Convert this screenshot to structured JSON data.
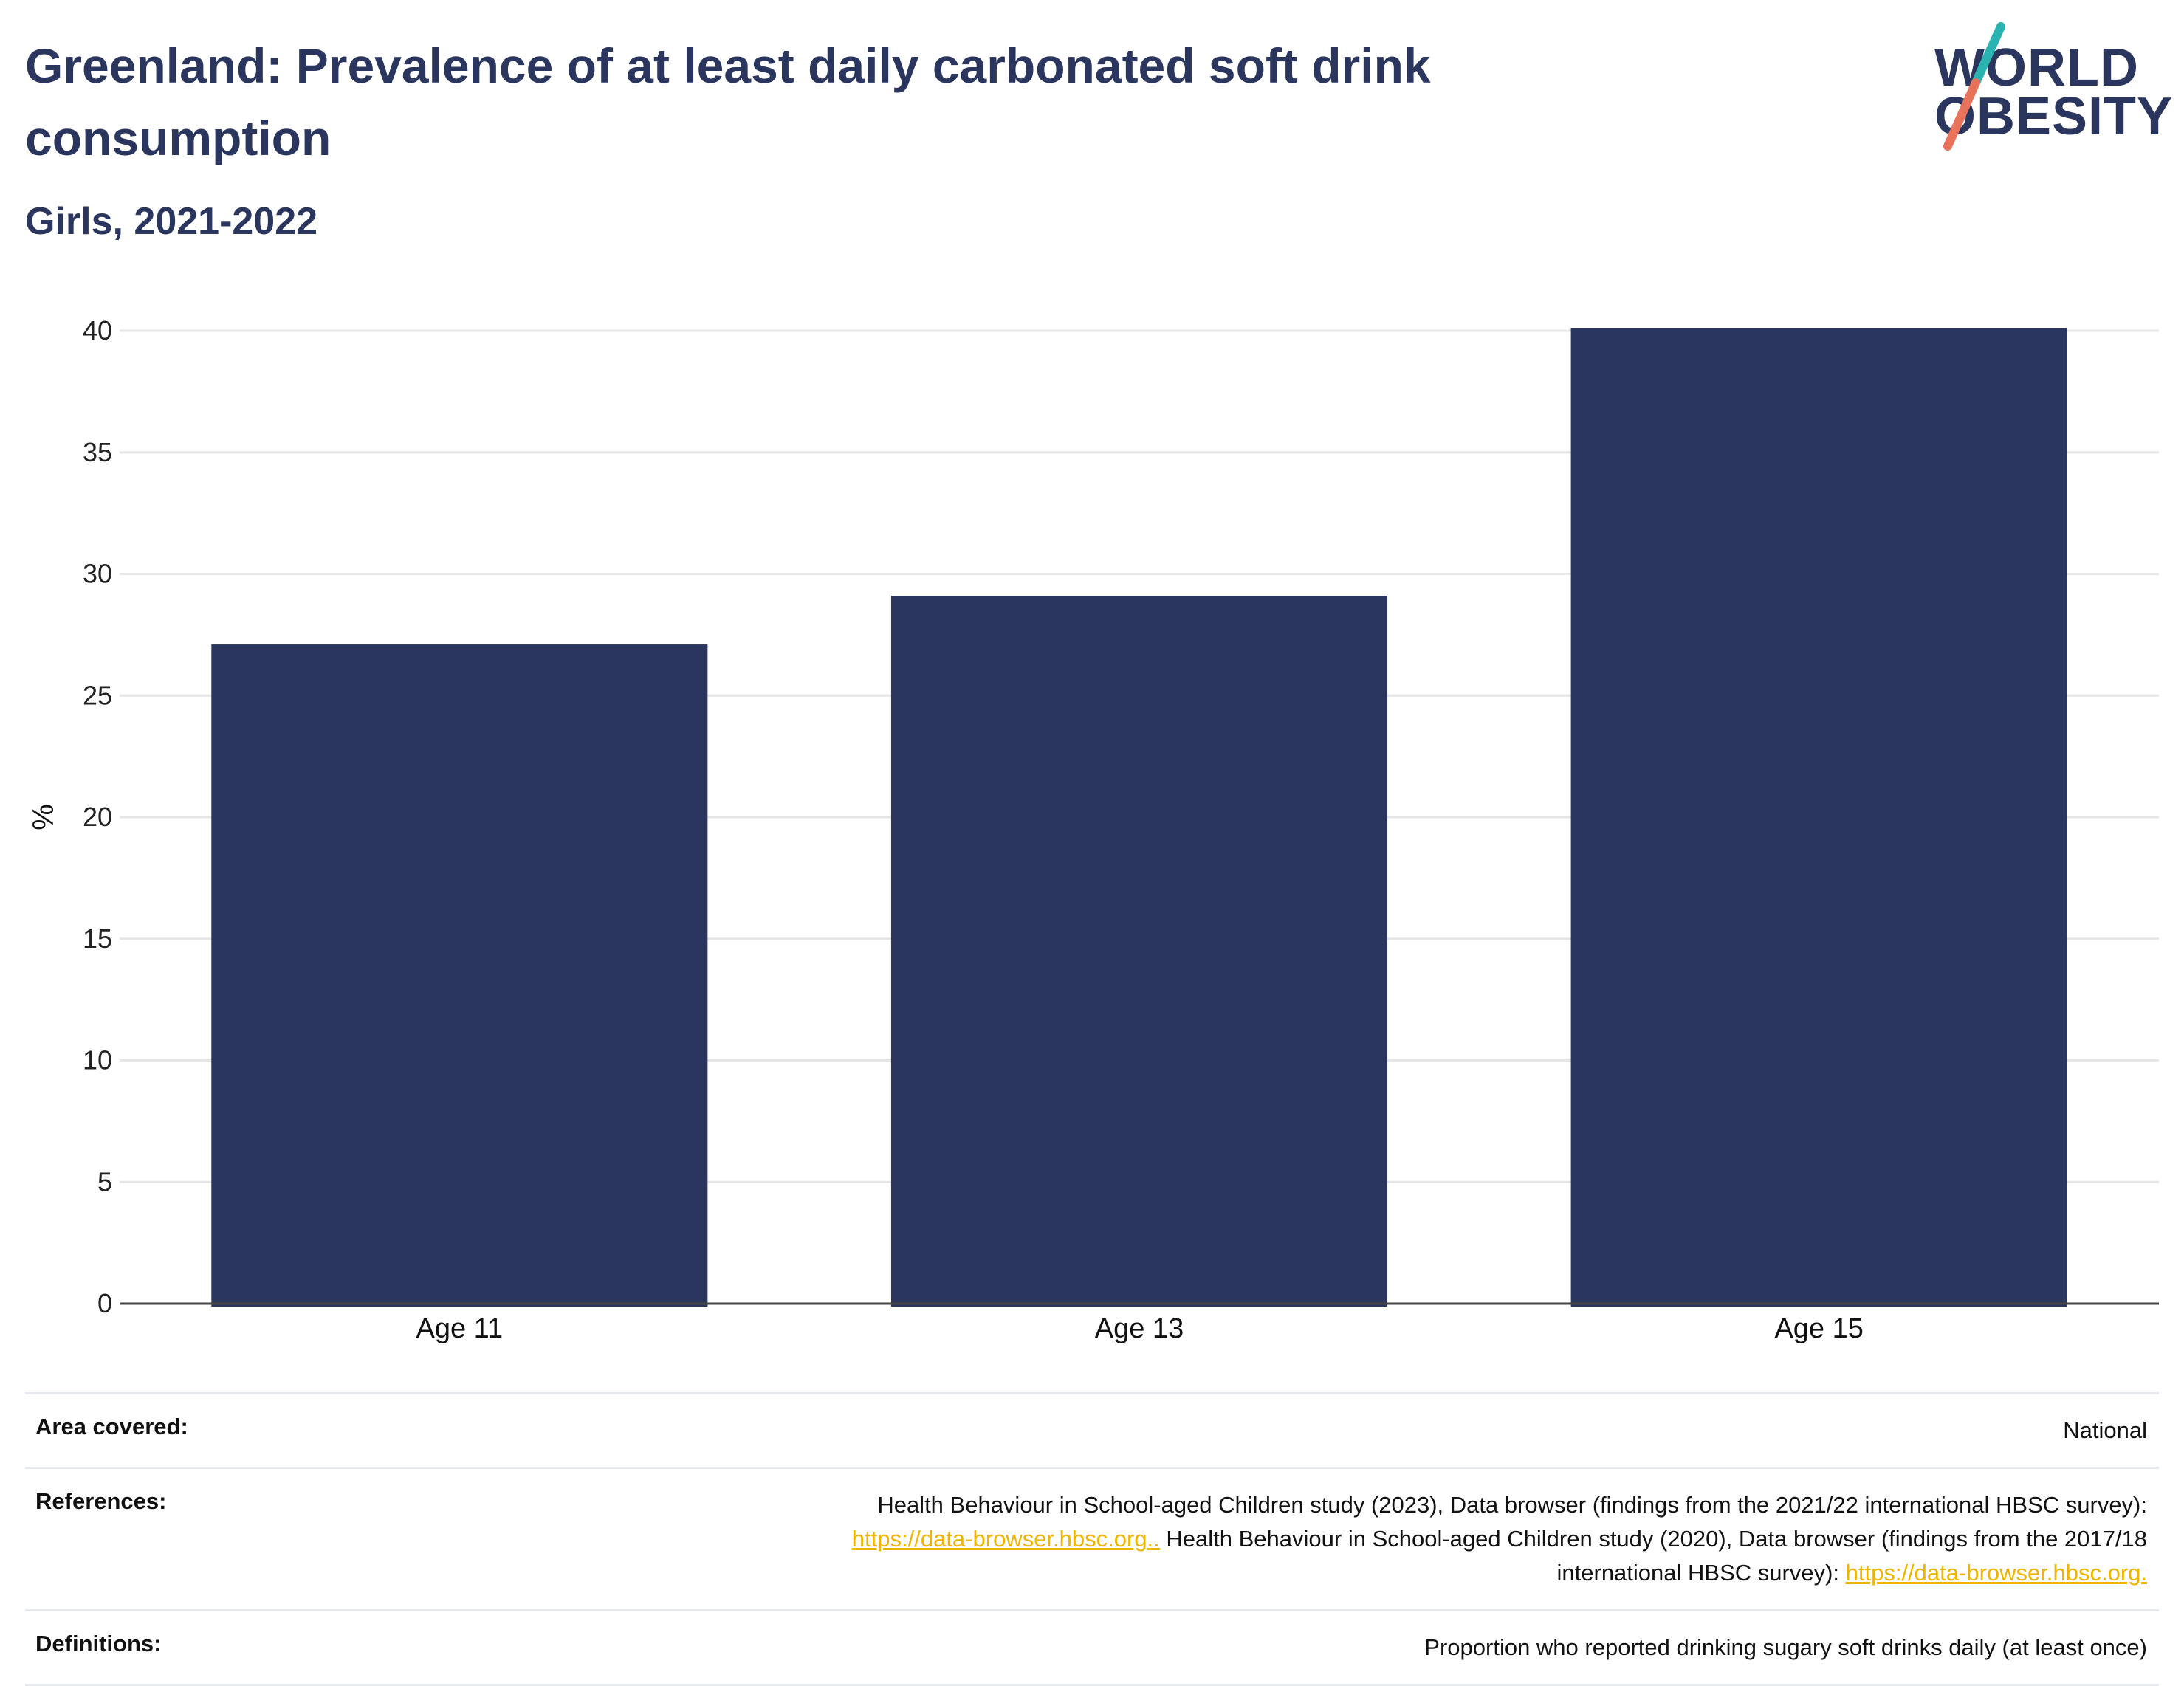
{
  "header": {
    "title": "Greenland: Prevalence of at least daily carbonated soft drink consumption",
    "subtitle": "Girls, 2021-2022"
  },
  "logo": {
    "line1": "WORLD",
    "line2": "OBESITY"
  },
  "colors": {
    "bar": "#2b365f",
    "title": "#2b365f",
    "grid": "#e6e6e6",
    "link": "#f0b400",
    "logo_teal": "#2bb3b1",
    "logo_coral": "#e8735a"
  },
  "chart_data": {
    "type": "bar",
    "categories": [
      "Age 11",
      "Age 13",
      "Age 15"
    ],
    "values": [
      27.1,
      29.1,
      40.1
    ],
    "ylabel": "%",
    "xlabel": "",
    "ylim": [
      0,
      40
    ],
    "yticks": [
      0,
      5,
      10,
      15,
      20,
      25,
      30,
      35,
      40
    ],
    "grid": true,
    "legend": "none"
  },
  "footer": {
    "area": {
      "label": "Area covered:",
      "value": "National"
    },
    "references": {
      "label": "References:",
      "text1": "Health Behaviour in School-aged Children study (2023), Data browser (findings from the 2021/22 international HBSC survey):",
      "link1": "https://data-browser.hbsc.org..",
      "text2": " Health Behaviour in School-aged Children study (2020), Data browser (findings from the 2017/18",
      "text3": "international HBSC survey): ",
      "link2": "https://data-browser.hbsc.org."
    },
    "definitions": {
      "label": "Definitions:",
      "value": "Proportion who reported drinking sugary soft drinks daily (at least once)"
    }
  }
}
